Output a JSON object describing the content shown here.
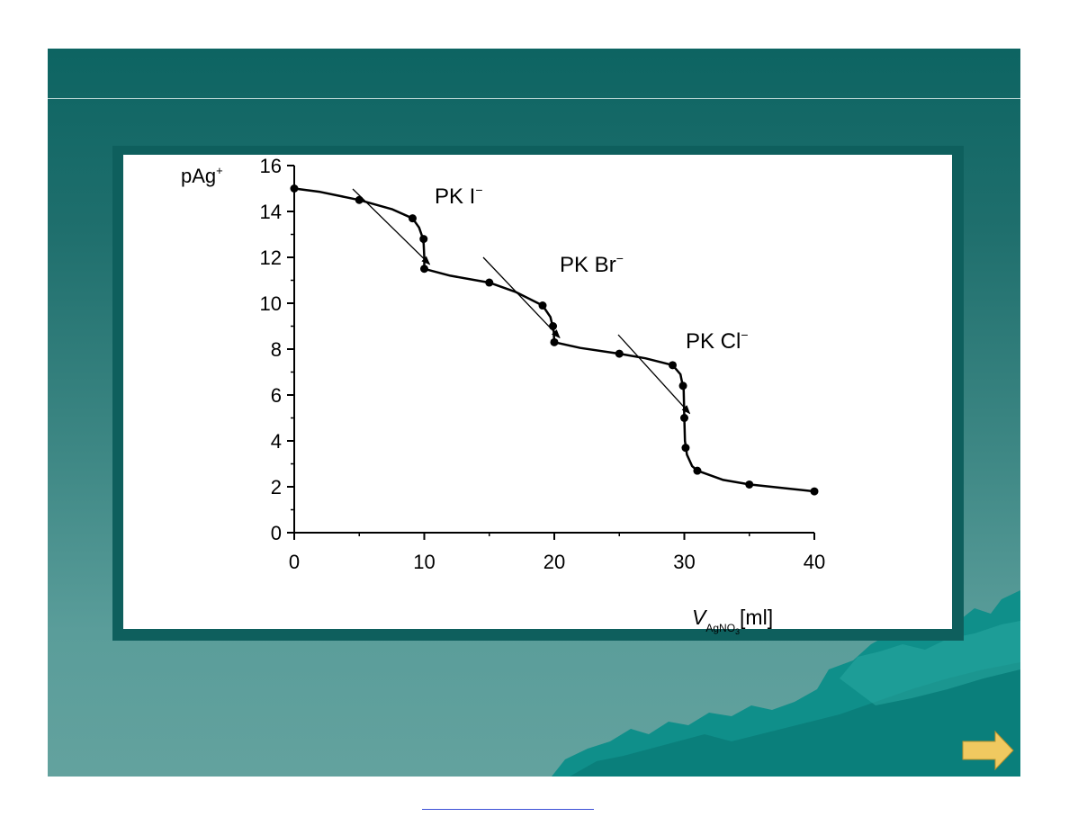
{
  "slide": {
    "title": "",
    "colors": {
      "background_top": "#0d6462",
      "background_bottom": "#63a29e",
      "frame": "#0e5f5d",
      "next_arrow": "#f0c960"
    }
  },
  "navigation": {
    "next_icon": "right-arrow-icon"
  },
  "chart_data": {
    "type": "line",
    "title": "",
    "xlabel_main": "V",
    "xlabel_sub": "AgNO",
    "xlabel_sub2": "3",
    "xlabel_unit": "[ml]",
    "ylabel_main": "pAg",
    "ylabel_sup": "+",
    "xlim": [
      0,
      40
    ],
    "ylim": [
      0,
      16
    ],
    "x_ticks": [
      0,
      10,
      20,
      30,
      40
    ],
    "y_ticks": [
      0,
      2,
      4,
      6,
      8,
      10,
      12,
      14,
      16
    ],
    "grid": false,
    "series": [
      {
        "points": [
          [
            0,
            15.0
          ],
          [
            5,
            14.5
          ],
          [
            9.1,
            13.7
          ],
          [
            9.95,
            12.8
          ],
          [
            10,
            11.5
          ],
          [
            15,
            10.9
          ],
          [
            19.1,
            9.9
          ],
          [
            19.9,
            9.0
          ],
          [
            20,
            8.3
          ],
          [
            25,
            7.8
          ],
          [
            29.1,
            7.3
          ],
          [
            29.9,
            6.4
          ],
          [
            30,
            5.0
          ],
          [
            30.1,
            3.7
          ],
          [
            31,
            2.7
          ],
          [
            35,
            2.1
          ],
          [
            40,
            1.8
          ]
        ],
        "curve": [
          [
            0,
            15.0
          ],
          [
            2,
            14.85
          ],
          [
            5,
            14.5
          ],
          [
            7.5,
            14.1
          ],
          [
            9.1,
            13.7
          ],
          [
            9.6,
            13.3
          ],
          [
            9.85,
            12.9
          ],
          [
            9.95,
            12.6
          ],
          [
            10,
            12.0
          ],
          [
            10,
            11.5
          ],
          [
            12,
            11.2
          ],
          [
            15,
            10.9
          ],
          [
            17,
            10.5
          ],
          [
            19.1,
            9.9
          ],
          [
            19.7,
            9.4
          ],
          [
            19.95,
            8.8
          ],
          [
            20,
            8.3
          ],
          [
            22,
            8.05
          ],
          [
            25,
            7.8
          ],
          [
            27,
            7.6
          ],
          [
            29.1,
            7.3
          ],
          [
            29.7,
            6.9
          ],
          [
            29.95,
            6.2
          ],
          [
            30,
            5.0
          ],
          [
            30.05,
            4.0
          ],
          [
            30.2,
            3.4
          ],
          [
            30.6,
            2.9
          ],
          [
            31,
            2.7
          ],
          [
            33,
            2.3
          ],
          [
            35,
            2.1
          ],
          [
            37.5,
            1.95
          ],
          [
            40,
            1.8
          ]
        ]
      }
    ],
    "annotations": [
      {
        "text": "PK I",
        "sup": "−",
        "x": 10,
        "y": 11.5
      },
      {
        "text": "PK Br",
        "sup": "−",
        "x": 20,
        "y": 8.3
      },
      {
        "text": "PK Cl",
        "sup": "−",
        "x": 30,
        "y": 5.0
      }
    ]
  }
}
